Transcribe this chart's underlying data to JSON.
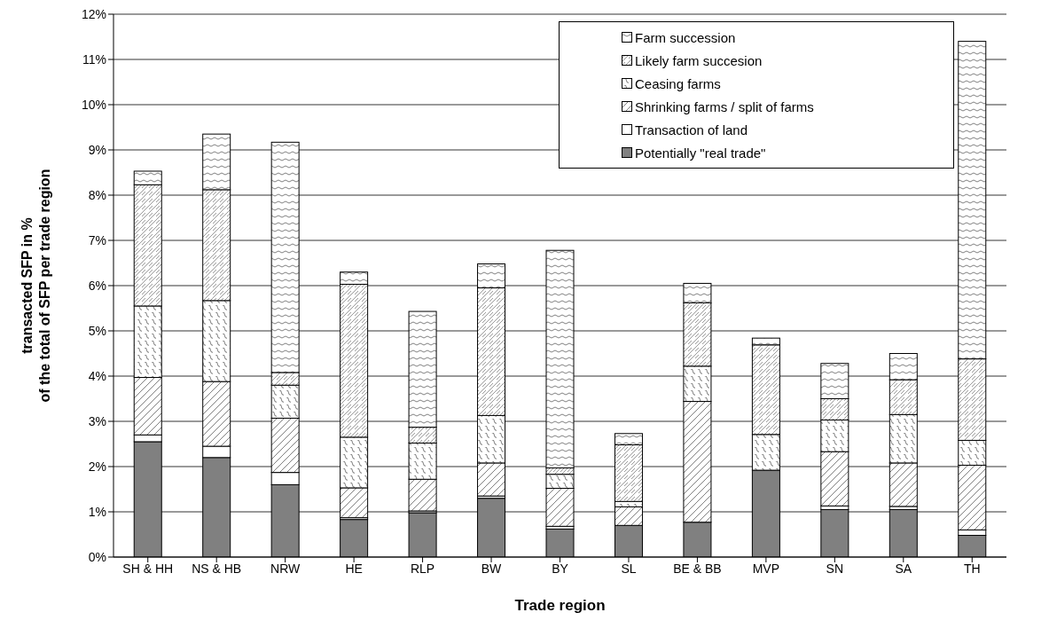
{
  "chart_data": {
    "type": "bar",
    "stacked": true,
    "xlabel": "Trade region",
    "ylabel": "transacted SFP in %\nof the total of SFP per trade region",
    "categories": [
      "SH & HH",
      "NS & HB",
      "NRW",
      "HE",
      "RLP",
      "BW",
      "BY",
      "SL",
      "BE & BB",
      "MVP",
      "SN",
      "SA",
      "TH"
    ],
    "series": [
      {
        "name": "Potentially \"real trade\"",
        "color": "#808080",
        "values": [
          2.55,
          2.2,
          1.6,
          0.83,
          0.98,
          1.3,
          0.62,
          0.7,
          0.77,
          1.92,
          1.05,
          1.05,
          0.48
        ]
      },
      {
        "name": "Transaction of land",
        "color": "#ffffff",
        "values": [
          0.15,
          0.25,
          0.27,
          0.04,
          0.04,
          0.05,
          0.06,
          null,
          null,
          null,
          0.08,
          0.07,
          0.12
        ]
      },
      {
        "name": "Shrinking farms / split of farms",
        "color": "#ffffff",
        "values": [
          1.27,
          1.43,
          1.2,
          0.66,
          0.7,
          0.73,
          0.84,
          0.41,
          2.67,
          0,
          1.2,
          0.96,
          1.43
        ]
      },
      {
        "name": "Ceasing farms",
        "color": "#ffffff",
        "values": [
          1.58,
          1.79,
          0.73,
          1.12,
          0.8,
          1.05,
          0.31,
          0.12,
          0.78,
          0.79,
          0.7,
          1.07,
          0.55
        ]
      },
      {
        "name": "Likely farm succesion",
        "color": "#ffffff",
        "values": [
          2.68,
          2.45,
          0.28,
          3.38,
          0.35,
          2.82,
          0.14,
          1.25,
          1.4,
          1.98,
          0.47,
          0.77,
          1.8
        ]
      },
      {
        "name": "Farm succession",
        "color": "#ffffff",
        "values": [
          0.3,
          1.23,
          5.09,
          0.27,
          2.56,
          0.53,
          4.81,
          0.25,
          0.43,
          0.15,
          0.78,
          0.58,
          7.02
        ]
      }
    ],
    "ylim": [
      0,
      12
    ],
    "yticks": [
      {
        "value": 0,
        "label": "0%"
      },
      {
        "value": 1,
        "label": "1%"
      },
      {
        "value": 2,
        "label": "2%"
      },
      {
        "value": 3,
        "label": "3%"
      },
      {
        "value": 4,
        "label": "4%"
      },
      {
        "value": 5,
        "label": "5%"
      },
      {
        "value": 6,
        "label": "6%"
      },
      {
        "value": 7,
        "label": "7%"
      },
      {
        "value": 8,
        "label": "8%"
      },
      {
        "value": 9,
        "label": "9%"
      },
      {
        "value": 10,
        "label": "10%"
      },
      {
        "value": 11,
        "label": "11%"
      },
      {
        "value": 12,
        "label": "12%"
      }
    ],
    "grid": "y",
    "legend": "top right"
  }
}
